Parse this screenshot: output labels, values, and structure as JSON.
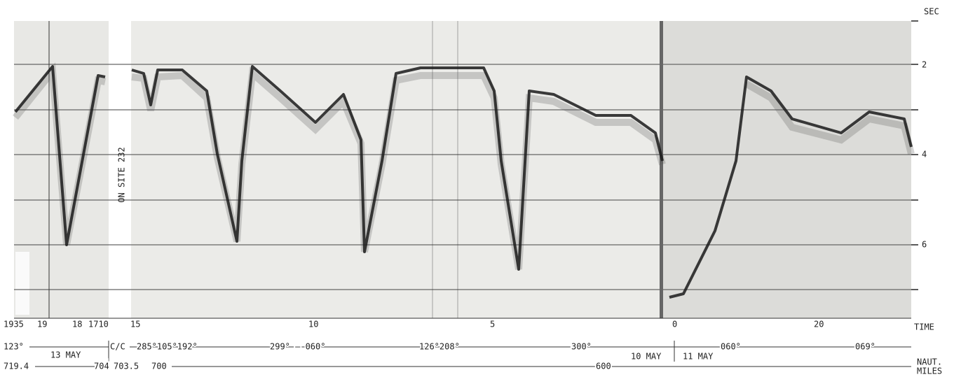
{
  "axis": {
    "unit": "SEC",
    "ticks": [
      "2",
      "4",
      "6"
    ]
  },
  "annotation": "ON SITE 232",
  "time": {
    "label": "TIME",
    "ticks": [
      "1935",
      "19",
      "18",
      "1710",
      "15",
      "10",
      "5",
      "0",
      "20"
    ]
  },
  "headings": [
    "123°",
    "C/C",
    "285°105°192°",
    "299° — 060°",
    "126°208°",
    "300°",
    "060°",
    "069°"
  ],
  "dates": [
    "13 MAY",
    "10 MAY",
    "11 MAY"
  ],
  "distance": {
    "label": [
      "NAUT.",
      "MILES"
    ],
    "ticks": [
      "719.4",
      "704",
      "703.5",
      "700",
      "600"
    ]
  }
}
